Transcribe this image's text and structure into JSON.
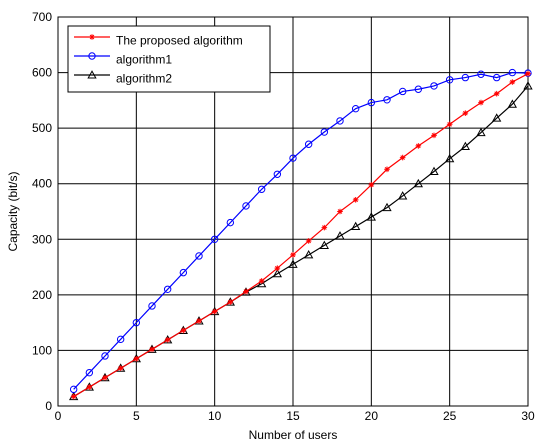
{
  "chart_data": {
    "type": "line",
    "title": "",
    "xlabel": "Number of users",
    "ylabel": "Capacity (bit/s)",
    "xlim": [
      0,
      30
    ],
    "ylim": [
      0,
      700
    ],
    "x_ticks": [
      0,
      5,
      10,
      15,
      20,
      25,
      30
    ],
    "y_ticks": [
      0,
      100,
      200,
      300,
      400,
      500,
      600,
      700
    ],
    "grid": true,
    "legend_position": "top-left",
    "x": [
      1,
      2,
      3,
      4,
      5,
      6,
      7,
      8,
      9,
      10,
      11,
      12,
      13,
      14,
      15,
      16,
      17,
      18,
      19,
      20,
      21,
      22,
      23,
      24,
      25,
      26,
      27,
      28,
      29,
      30
    ],
    "series": [
      {
        "name": "The proposed algorithm",
        "color": "#ff0000",
        "marker": "star",
        "values": [
          17,
          34,
          51,
          68,
          85,
          102,
          119,
          136,
          153,
          170,
          187,
          206,
          225,
          248,
          272,
          297,
          321,
          350,
          371,
          398,
          426,
          447,
          468,
          487,
          507,
          527,
          546,
          562,
          583,
          598
        ]
      },
      {
        "name": "algorithm1",
        "color": "#0000ff",
        "marker": "circle",
        "values": [
          30,
          60,
          90,
          120,
          150,
          180,
          210,
          240,
          270,
          300,
          330,
          360,
          390,
          417,
          446,
          471,
          493,
          513,
          535,
          546,
          551,
          566,
          570,
          576,
          587,
          591,
          597,
          591,
          600,
          599
        ]
      },
      {
        "name": "algorithm2",
        "color": "#000000",
        "marker": "triangle",
        "values": [
          17,
          34,
          51,
          68,
          85,
          102,
          119,
          136,
          153,
          170,
          187,
          205,
          220,
          238,
          255,
          272,
          289,
          306,
          323,
          340,
          357,
          378,
          400,
          422,
          445,
          467,
          492,
          518,
          543,
          576
        ]
      }
    ]
  }
}
